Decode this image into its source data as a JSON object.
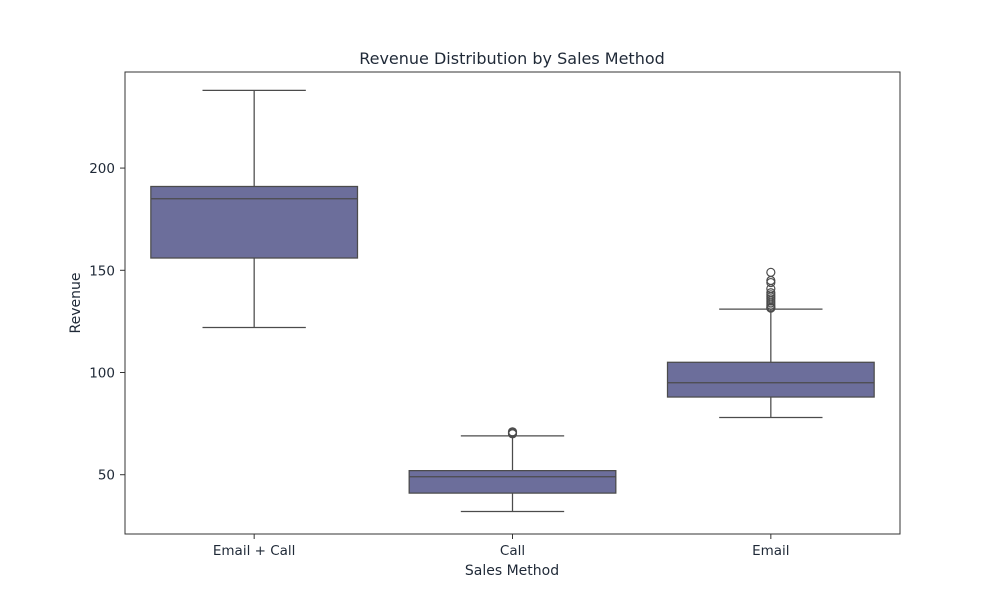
{
  "chart_data": {
    "type": "box",
    "title": "Revenue Distribution by Sales Method",
    "xlabel": "Sales Method",
    "ylabel": "Revenue",
    "ylim": [
      21,
      247
    ],
    "yticks": [
      50,
      100,
      150,
      200
    ],
    "categories": [
      "Email + Call",
      "Call",
      "Email"
    ],
    "box_color": "#6c6e9b",
    "line_color": "#4b4b4b",
    "series": [
      {
        "category": "Email + Call",
        "whisker_low": 122,
        "q1": 156,
        "median": 185,
        "q3": 191,
        "whisker_high": 238,
        "outliers": []
      },
      {
        "category": "Call",
        "whisker_low": 32,
        "q1": 41,
        "median": 49,
        "q3": 52,
        "whisker_high": 69,
        "outliers": [
          70,
          70.5,
          71
        ]
      },
      {
        "category": "Email",
        "whisker_low": 78,
        "q1": 88,
        "median": 95,
        "q3": 105,
        "whisker_high": 131,
        "outliers": [
          131.5,
          132,
          133,
          134,
          135,
          136,
          137,
          138,
          139,
          141,
          144,
          145,
          149
        ]
      }
    ]
  }
}
